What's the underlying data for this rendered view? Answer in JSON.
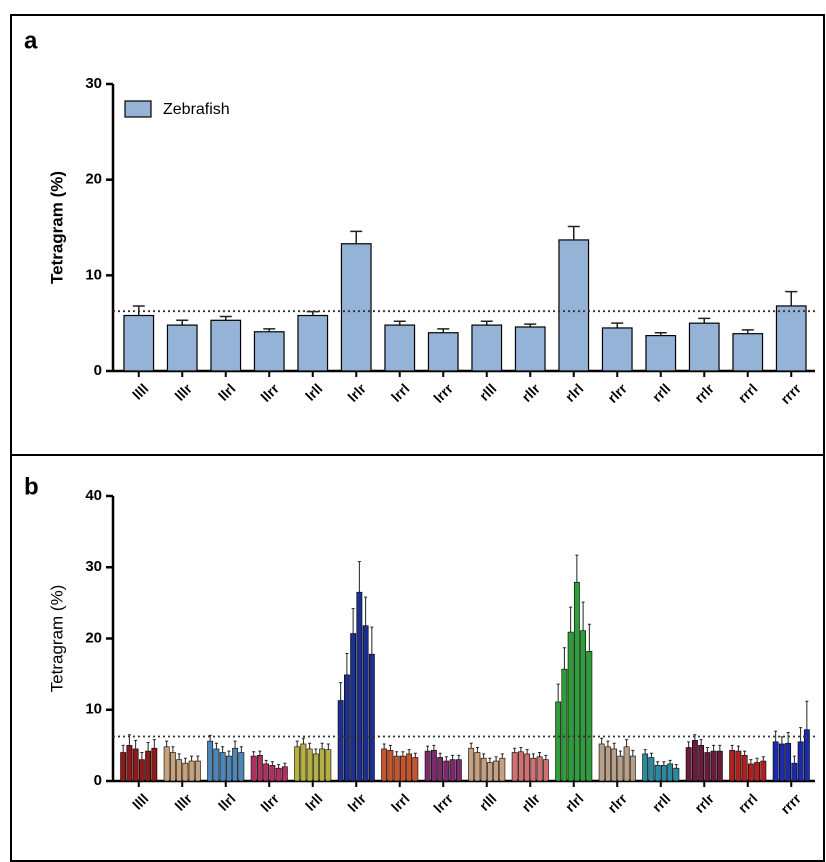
{
  "chart_data": [
    {
      "type": "bar",
      "panel_label": "a",
      "ylabel": "Tetragram (%)",
      "categories": [
        "llll",
        "lllr",
        "llrl",
        "llrr",
        "lrll",
        "lrlr",
        "lrrl",
        "lrrr",
        "rlll",
        "rllr",
        "rlrl",
        "rlrr",
        "rrll",
        "rrlr",
        "rrrl",
        "rrrr"
      ],
      "series": [
        {
          "name": "Zebrafish",
          "color": "#95b3d7",
          "values": [
            5.8,
            4.8,
            5.3,
            4.1,
            5.8,
            13.3,
            4.8,
            4.0,
            4.8,
            4.6,
            13.7,
            4.5,
            3.7,
            5.0,
            3.9,
            6.8
          ],
          "errors": [
            1.0,
            0.5,
            0.4,
            0.3,
            0.4,
            1.3,
            0.4,
            0.4,
            0.4,
            0.3,
            1.4,
            0.5,
            0.3,
            0.5,
            0.4,
            1.5
          ]
        }
      ],
      "reference_line": 6.25,
      "legend": "upper left",
      "ylim": [
        0,
        30
      ],
      "yticks": [
        0,
        10,
        20,
        30
      ]
    },
    {
      "type": "grouped_bar",
      "panel_label": "b",
      "ylabel": "Tetragram (%)",
      "categories": [
        "llll",
        "lllr",
        "llrl",
        "llrr",
        "lrll",
        "lrlr",
        "lrrl",
        "lrrr",
        "rlll",
        "rllr",
        "rlrl",
        "rlrr",
        "rrll",
        "rrlr",
        "rrrl",
        "rrrr"
      ],
      "groups": [
        {
          "color": "#8b1a1a",
          "values": [
            4.0,
            5.0,
            4.5,
            3.0,
            4.2,
            4.6
          ],
          "errors": [
            1.0,
            1.5,
            1.2,
            1.0,
            1.2,
            1.2
          ]
        },
        {
          "color": "#c8a27a",
          "values": [
            4.8,
            4.0,
            3.0,
            2.5,
            2.8,
            2.8
          ],
          "errors": [
            0.8,
            0.8,
            0.8,
            0.7,
            0.7,
            0.7
          ]
        },
        {
          "color": "#4f86b8",
          "values": [
            5.6,
            4.5,
            4.0,
            3.5,
            4.6,
            4.0
          ],
          "errors": [
            0.8,
            0.8,
            0.8,
            0.7,
            1.0,
            0.8
          ]
        },
        {
          "color": "#b03060",
          "values": [
            3.5,
            3.6,
            2.4,
            2.2,
            1.8,
            2.0
          ],
          "errors": [
            0.6,
            0.6,
            0.5,
            0.5,
            0.5,
            0.5
          ]
        },
        {
          "color": "#b5b040",
          "values": [
            4.8,
            5.2,
            4.5,
            3.8,
            4.5,
            4.4
          ],
          "errors": [
            0.8,
            0.8,
            0.8,
            0.7,
            0.8,
            0.8
          ]
        },
        {
          "color": "#1c2f8f",
          "values": [
            11.3,
            14.9,
            20.7,
            26.5,
            21.8,
            17.8
          ],
          "errors": [
            2.5,
            3.0,
            3.5,
            4.3,
            4.0,
            3.8
          ]
        },
        {
          "color": "#c8552a",
          "values": [
            4.5,
            4.3,
            3.5,
            3.5,
            3.8,
            3.3
          ],
          "errors": [
            0.7,
            0.7,
            0.6,
            0.6,
            0.6,
            0.6
          ]
        },
        {
          "color": "#7b2a6b",
          "values": [
            4.2,
            4.3,
            3.3,
            2.8,
            3.0,
            3.0
          ],
          "errors": [
            0.7,
            0.7,
            0.6,
            0.6,
            0.6,
            0.6
          ]
        },
        {
          "color": "#c8a080",
          "values": [
            4.6,
            4.0,
            3.2,
            2.6,
            2.8,
            3.2
          ],
          "errors": [
            0.7,
            0.7,
            0.6,
            0.6,
            0.6,
            0.6
          ]
        },
        {
          "color": "#d07070",
          "values": [
            4.0,
            4.1,
            3.8,
            3.2,
            3.4,
            3.0
          ],
          "errors": [
            0.6,
            0.6,
            0.6,
            0.6,
            0.6,
            0.6
          ]
        },
        {
          "color": "#2e9e3a",
          "values": [
            11.1,
            15.7,
            20.9,
            27.9,
            21.1,
            18.2
          ],
          "errors": [
            2.5,
            3.0,
            3.5,
            3.8,
            4.0,
            3.8
          ]
        },
        {
          "color": "#b8a088",
          "values": [
            5.2,
            4.8,
            4.5,
            3.5,
            4.8,
            3.5
          ],
          "errors": [
            0.8,
            0.8,
            0.8,
            0.7,
            1.0,
            0.8
          ]
        },
        {
          "color": "#2a8aa0",
          "values": [
            3.8,
            3.3,
            2.2,
            2.2,
            2.4,
            1.8
          ],
          "errors": [
            0.6,
            0.6,
            0.5,
            0.5,
            0.5,
            0.5
          ]
        },
        {
          "color": "#6a1a3a",
          "values": [
            4.7,
            5.7,
            5.0,
            4.0,
            4.2,
            4.2
          ],
          "errors": [
            0.8,
            0.8,
            0.8,
            0.7,
            0.8,
            0.8
          ]
        },
        {
          "color": "#b02020",
          "values": [
            4.3,
            4.2,
            3.6,
            2.4,
            2.6,
            2.8
          ],
          "errors": [
            0.7,
            0.7,
            0.6,
            0.6,
            0.6,
            0.6
          ]
        },
        {
          "color": "#1a2aa8",
          "values": [
            5.5,
            5.2,
            5.3,
            2.5,
            5.5,
            7.2
          ],
          "errors": [
            1.5,
            1.0,
            1.5,
            1.0,
            2.0,
            4.0
          ]
        }
      ],
      "reference_line": 6.25,
      "ylim": [
        0,
        40
      ],
      "yticks": [
        0,
        10,
        20,
        30,
        40
      ]
    }
  ]
}
